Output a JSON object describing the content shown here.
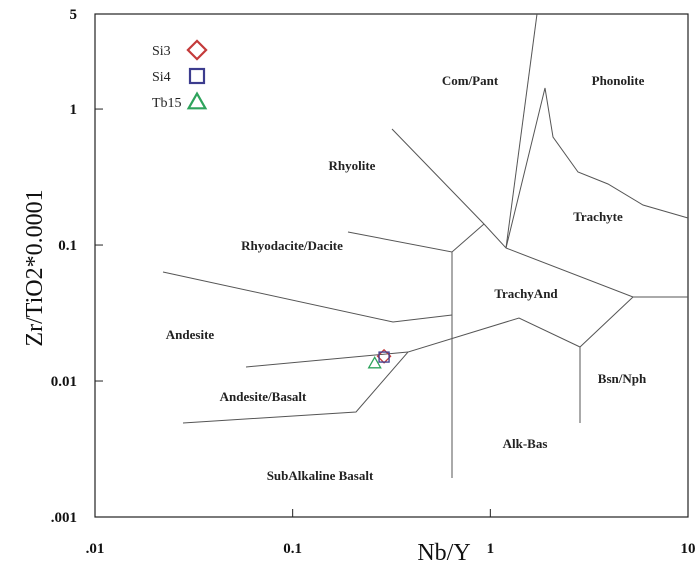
{
  "chart_data": {
    "type": "scatter",
    "xlabel": "Nb/Y",
    "ylabel": "Zr/TiO2*0.0001",
    "xscale": "log",
    "yscale": "log",
    "xlim": [
      0.01,
      10
    ],
    "ylim": [
      0.001,
      5
    ],
    "xticks": [
      {
        "value": 0.01,
        "label": ".01"
      },
      0.1,
      1,
      10
    ],
    "yticks": [
      {
        "value": 0.001,
        "label": ".001"
      },
      0.01,
      0.1,
      1,
      5
    ],
    "legend": "upper left",
    "series": [
      {
        "name": "Si3",
        "color": "#c43a3a",
        "marker": "diamond",
        "x": [
          0.29
        ],
        "y": [
          0.0152
        ]
      },
      {
        "name": "Si4",
        "color": "#3c3c8e",
        "marker": "square",
        "x": [
          0.29
        ],
        "y": [
          0.015
        ]
      },
      {
        "name": "Tb15",
        "color": "#2ea35c",
        "marker": "triangle",
        "x": [
          0.26
        ],
        "y": [
          0.0135
        ]
      }
    ],
    "annotations": [
      "Com/Pant",
      "Phonolite",
      "Rhyolite",
      "Trachyte",
      "Rhyodacite/Dacite",
      "TrachyAnd",
      "Andesite",
      "Andesite/Basalt",
      "Bsn/Nph",
      "Alk-Bas",
      "SubAlkaline Basalt"
    ]
  }
}
